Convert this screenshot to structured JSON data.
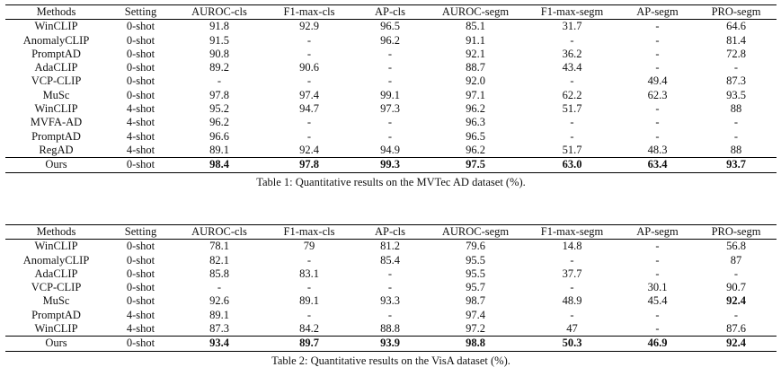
{
  "headers": [
    "Methods",
    "Setting",
    "AUROC-cls",
    "F1-max-cls",
    "AP-cls",
    "AUROC-segm",
    "F1-max-segm",
    "AP-segm",
    "PRO-segm"
  ],
  "table1": {
    "caption": "Table 1: Quantitative results on the MVTec AD dataset (%).",
    "rows": [
      [
        "WinCLIP",
        "0-shot",
        "91.8",
        "92.9",
        "96.5",
        "85.1",
        "31.7",
        "-",
        "64.6"
      ],
      [
        "AnomalyCLIP",
        "0-shot",
        "91.5",
        "-",
        "96.2",
        "91.1",
        "-",
        "-",
        "81.4"
      ],
      [
        "PromptAD",
        "0-shot",
        "90.8",
        "-",
        "-",
        "92.1",
        "36.2",
        "-",
        "72.8"
      ],
      [
        "AdaCLIP",
        "0-shot",
        "89.2",
        "90.6",
        "-",
        "88.7",
        "43.4",
        "-",
        "-"
      ],
      [
        "VCP-CLIP",
        "0-shot",
        "-",
        "-",
        "-",
        "92.0",
        "-",
        "49.4",
        "87.3"
      ],
      [
        "MuSc",
        "0-shot",
        "97.8",
        "97.4",
        "99.1",
        "97.1",
        "62.2",
        "62.3",
        "93.5"
      ],
      [
        "WinCLIP",
        "4-shot",
        "95.2",
        "94.7",
        "97.3",
        "96.2",
        "51.7",
        "-",
        "88"
      ],
      [
        "MVFA-AD",
        "4-shot",
        "96.2",
        "-",
        "-",
        "96.3",
        "-",
        "-",
        "-"
      ],
      [
        "PromptAD",
        "4-shot",
        "96.6",
        "-",
        "-",
        "96.5",
        "-",
        "-",
        "-"
      ],
      [
        "RegAD",
        "4-shot",
        "89.1",
        "92.4",
        "94.9",
        "96.2",
        "51.7",
        "48.3",
        "88"
      ]
    ],
    "ours": [
      "Ours",
      "0-shot",
      "98.4",
      "97.8",
      "99.3",
      "97.5",
      "63.0",
      "63.4",
      "93.7"
    ]
  },
  "table2": {
    "caption": "Table 2: Quantitative results on the VisA dataset (%).",
    "rows": [
      [
        "WinCLIP",
        "0-shot",
        "78.1",
        "79",
        "81.2",
        "79.6",
        "14.8",
        "-",
        "56.8"
      ],
      [
        "AnomalyCLIP",
        "0-shot",
        "82.1",
        "-",
        "85.4",
        "95.5",
        "-",
        "-",
        "87"
      ],
      [
        "AdaCLIP",
        "0-shot",
        "85.8",
        "83.1",
        "-",
        "95.5",
        "37.7",
        "-",
        "-"
      ],
      [
        "VCP-CLIP",
        "0-shot",
        "-",
        "-",
        "-",
        "95.7",
        "-",
        "30.1",
        "90.7"
      ],
      [
        "MuSc",
        "0-shot",
        "92.6",
        "89.1",
        "93.3",
        "98.7",
        "48.9",
        "45.4",
        "92.4"
      ],
      [
        "PromptAD",
        "4-shot",
        "89.1",
        "-",
        "-",
        "97.4",
        "-",
        "-",
        "-"
      ],
      [
        "WinCLIP",
        "4-shot",
        "87.3",
        "84.2",
        "88.8",
        "97.2",
        "47",
        "-",
        "87.6"
      ]
    ],
    "bold_cells": [
      [
        4,
        8
      ]
    ],
    "ours": [
      "Ours",
      "0-shot",
      "93.4",
      "89.7",
      "93.9",
      "98.8",
      "50.3",
      "46.9",
      "92.4"
    ]
  }
}
